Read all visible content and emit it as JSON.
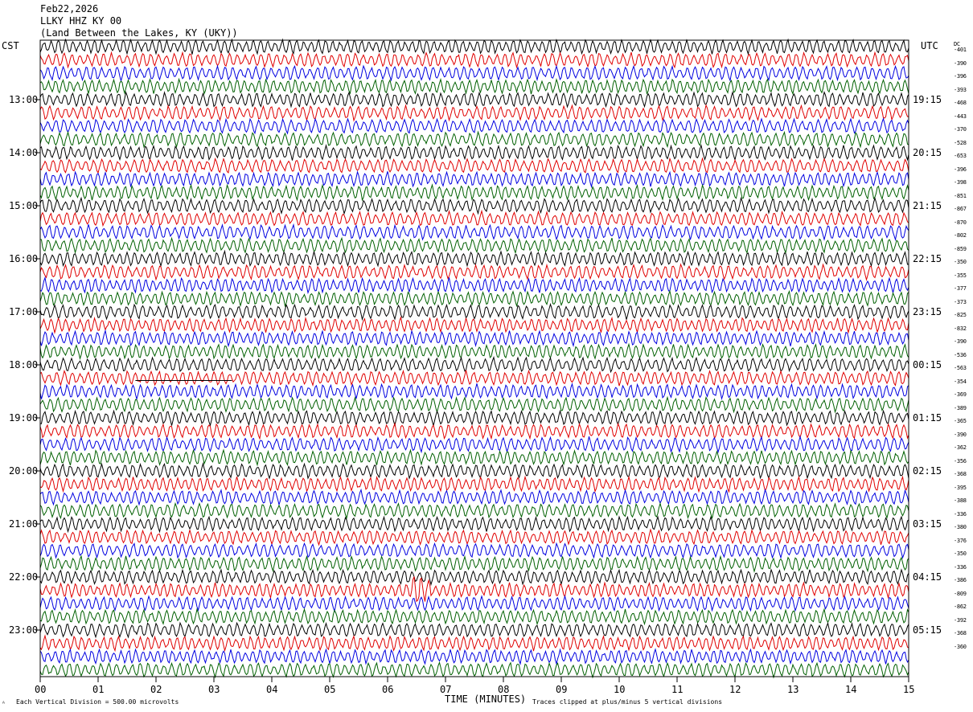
{
  "header": {
    "date": "Feb22,2026",
    "station": "LLKY HHZ KY 00",
    "location": "(Land Between the Lakes, KY (UKY))"
  },
  "left_tz": "CST",
  "right_tz": "UTC",
  "dc_label": "DC",
  "footer": {
    "scale_note": "Each Vertical Division = 500.00 microvolts",
    "clip_note": "Traces clipped at plus/minus 5 vertical divisions",
    "corner_mark": "ᴬ"
  },
  "colors": {
    "trace_cycle": [
      "#000000",
      "#e00000",
      "#0000e0",
      "#006000"
    ],
    "frame": "#000000"
  },
  "chart_data": {
    "type": "line",
    "title": "LLKY HHZ KY 00",
    "xlabel": "TIME (MINUTES)",
    "xlim": [
      0,
      15
    ],
    "xticks": [
      "00",
      "01",
      "02",
      "03",
      "04",
      "05",
      "06",
      "07",
      "08",
      "09",
      "10",
      "11",
      "12",
      "13",
      "14",
      "15"
    ],
    "left_hour_labels": [
      "13:00",
      "14:00",
      "15:00",
      "16:00",
      "17:00",
      "18:00",
      "19:00",
      "20:00",
      "21:00",
      "22:00",
      "23:00"
    ],
    "right_hour_labels": [
      "19:15",
      "20:15",
      "21:15",
      "22:15",
      "23:15",
      "00:15",
      "01:15",
      "02:15",
      "03:15",
      "04:15",
      "05:15"
    ],
    "trace_count": 48,
    "traces_per_hour": 4,
    "minutes_per_trace": 15,
    "dc_offsets": [
      "-401",
      "-390",
      "-396",
      "-393",
      "-468",
      "-443",
      "-370",
      "-528",
      "-653",
      "-396",
      "-398",
      "-851",
      "-867",
      "-870",
      "-802",
      "-859",
      "-350",
      "-355",
      "-377",
      "-373",
      "-825",
      "-832",
      "-390",
      "-536",
      "-563",
      "-354",
      "-369",
      "-389",
      "-365",
      "-390",
      "-362",
      "-356",
      "-368",
      "-395",
      "-388",
      "-336",
      "-380",
      "-376",
      "-350",
      "-336",
      "-386",
      "-809",
      "-862",
      "-392",
      "-368",
      "-360"
    ],
    "events": [
      {
        "trace": 41,
        "minute": 6.6,
        "note": "spike"
      },
      {
        "trace": 25,
        "minute": 2.2,
        "note": "gap"
      }
    ]
  }
}
